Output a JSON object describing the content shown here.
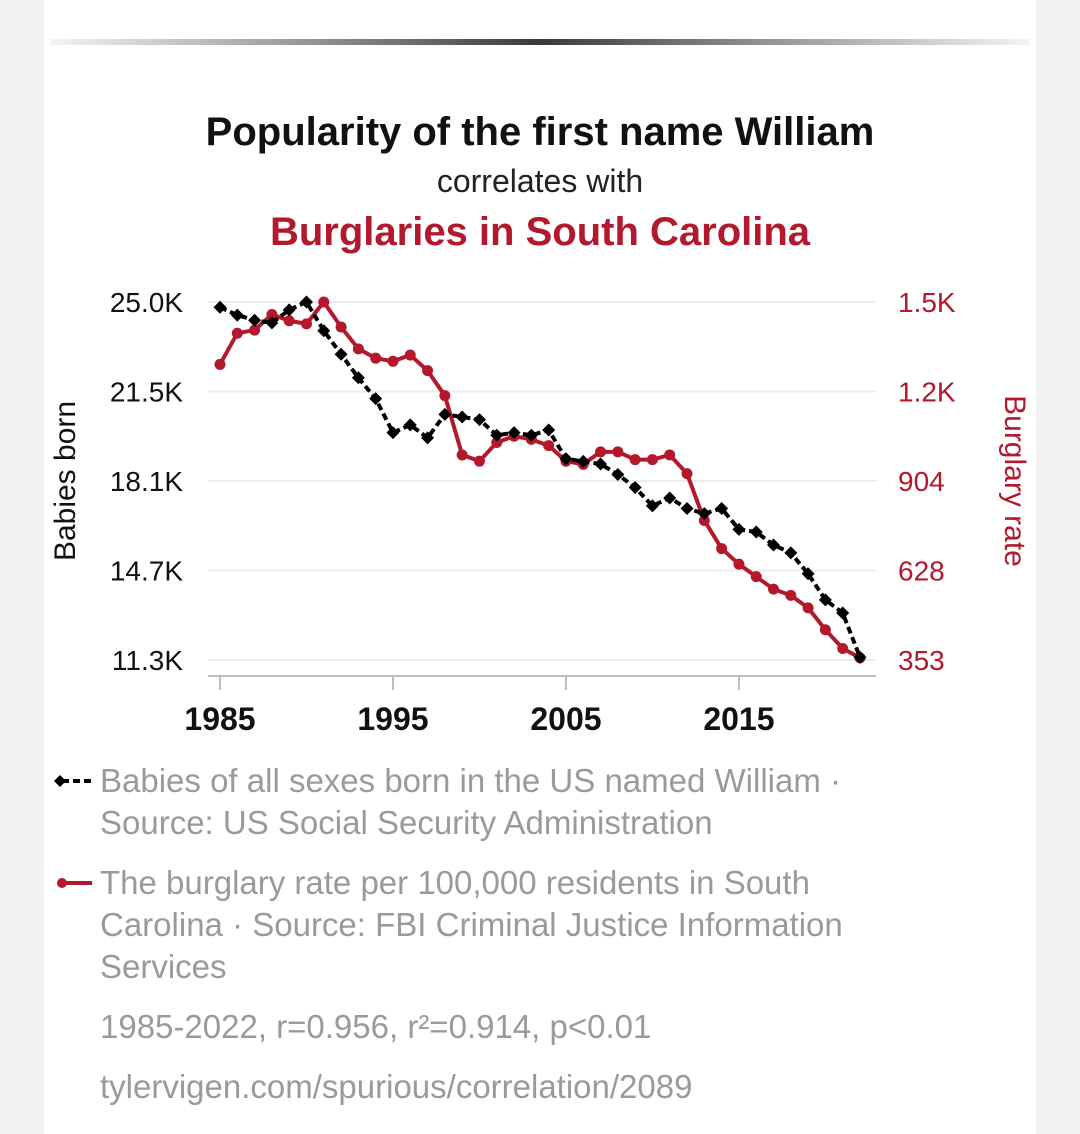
{
  "header": {
    "title": "Popularity of the first name William",
    "connector": "correlates with",
    "subtitle": "Burglaries in South Carolina"
  },
  "colors": {
    "series1": "#000000",
    "series2": "#b3182d",
    "muted": "#9a9a9a"
  },
  "chart_data": {
    "type": "line",
    "x_ticks": [
      "1985",
      "1995",
      "2005",
      "2015"
    ],
    "xlim": [
      1985,
      2022
    ],
    "y_left": {
      "label": "Babies born",
      "ticks": [
        "25.0K",
        "21.5K",
        "18.1K",
        "14.7K",
        "11.3K"
      ],
      "ylim": [
        11300,
        25000
      ]
    },
    "y_right": {
      "label": "Burglary rate",
      "ticks": [
        "1.5K",
        "1.2K",
        "904",
        "628",
        "353"
      ],
      "ylim": [
        353,
        1500
      ]
    },
    "grid": true,
    "series": [
      {
        "name": "Babies of all sexes born in the US named William",
        "axis": "left",
        "marker": "diamond",
        "dashed": true,
        "x": [
          1985,
          1986,
          1987,
          1988,
          1989,
          1990,
          1991,
          1992,
          1993,
          1994,
          1995,
          1996,
          1997,
          1998,
          1999,
          2000,
          2001,
          2002,
          2003,
          2004,
          2005,
          2006,
          2007,
          2008,
          2009,
          2010,
          2011,
          2012,
          2013,
          2014,
          2015,
          2016,
          2017,
          2018,
          2019,
          2020,
          2021,
          2022
        ],
        "values": [
          24800,
          24500,
          24300,
          24200,
          24700,
          25000,
          23900,
          23000,
          22100,
          21300,
          20000,
          20300,
          19800,
          20700,
          20600,
          20500,
          19900,
          20000,
          19900,
          20100,
          19000,
          18900,
          18800,
          18400,
          17900,
          17200,
          17500,
          17100,
          16900,
          17100,
          16300,
          16200,
          15700,
          15400,
          14600,
          13600,
          13100,
          11400
        ]
      },
      {
        "name": "The burglary rate per 100,000 residents in South Carolina",
        "axis": "right",
        "marker": "circle",
        "dashed": false,
        "x": [
          1985,
          1986,
          1987,
          1988,
          1989,
          1990,
          1991,
          1992,
          1993,
          1994,
          1995,
          1996,
          1997,
          1998,
          1999,
          2000,
          2001,
          2002,
          2003,
          2004,
          2005,
          2006,
          2007,
          2008,
          2009,
          2010,
          2011,
          2012,
          2013,
          2014,
          2015,
          2016,
          2017,
          2018,
          2019,
          2020,
          2021,
          2022
        ],
        "values": [
          1300,
          1400,
          1410,
          1460,
          1440,
          1430,
          1500,
          1420,
          1350,
          1320,
          1310,
          1330,
          1280,
          1200,
          1010,
          990,
          1050,
          1070,
          1060,
          1040,
          990,
          980,
          1020,
          1020,
          995,
          995,
          1010,
          950,
          800,
          710,
          660,
          620,
          580,
          560,
          520,
          450,
          390,
          360
        ]
      }
    ]
  },
  "legend": [
    {
      "text": "Babies of all sexes born in the US named William · Source: US Social Security Administration"
    },
    {
      "text": "The burglary rate per 100,000 residents in South Carolina · Source: FBI Criminal Justice Information Services"
    }
  ],
  "stats": "1985-2022, r=0.956, r²=0.914, p<0.01",
  "url": "tylervigen.com/spurious/correlation/2089"
}
